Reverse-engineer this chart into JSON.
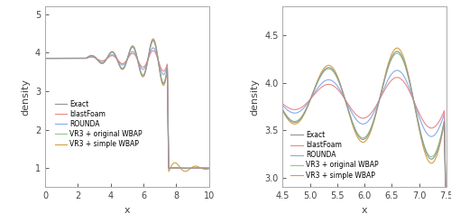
{
  "xlabel": "x",
  "ylabel": "density",
  "xlim1": [
    0,
    10
  ],
  "ylim1": [
    0.5,
    5.2
  ],
  "xlim2": [
    4.5,
    7.5
  ],
  "ylim2": [
    2.9,
    4.8
  ],
  "xticks1": [
    0,
    2,
    4,
    6,
    8,
    10
  ],
  "yticks1": [
    1,
    2,
    3,
    4,
    5
  ],
  "xticks2": [
    4.5,
    5.0,
    5.5,
    6.0,
    6.5,
    7.0,
    7.5
  ],
  "yticks2": [
    3.0,
    3.5,
    4.0,
    4.5
  ],
  "legend_labels": [
    "Exact",
    "blastFoam",
    "ROUNDA",
    "VR3 + original WBAP",
    "VR3 + simple WBAP"
  ],
  "colors": [
    "#999999",
    "#e88888",
    "#88aae8",
    "#88cc88",
    "#d4a040"
  ],
  "linewidths": [
    0.9,
    0.8,
    0.8,
    0.8,
    0.8
  ],
  "shock_x": 7.5,
  "osc_start": 2.5,
  "rho_flat": 3.857,
  "freq": 5.0
}
